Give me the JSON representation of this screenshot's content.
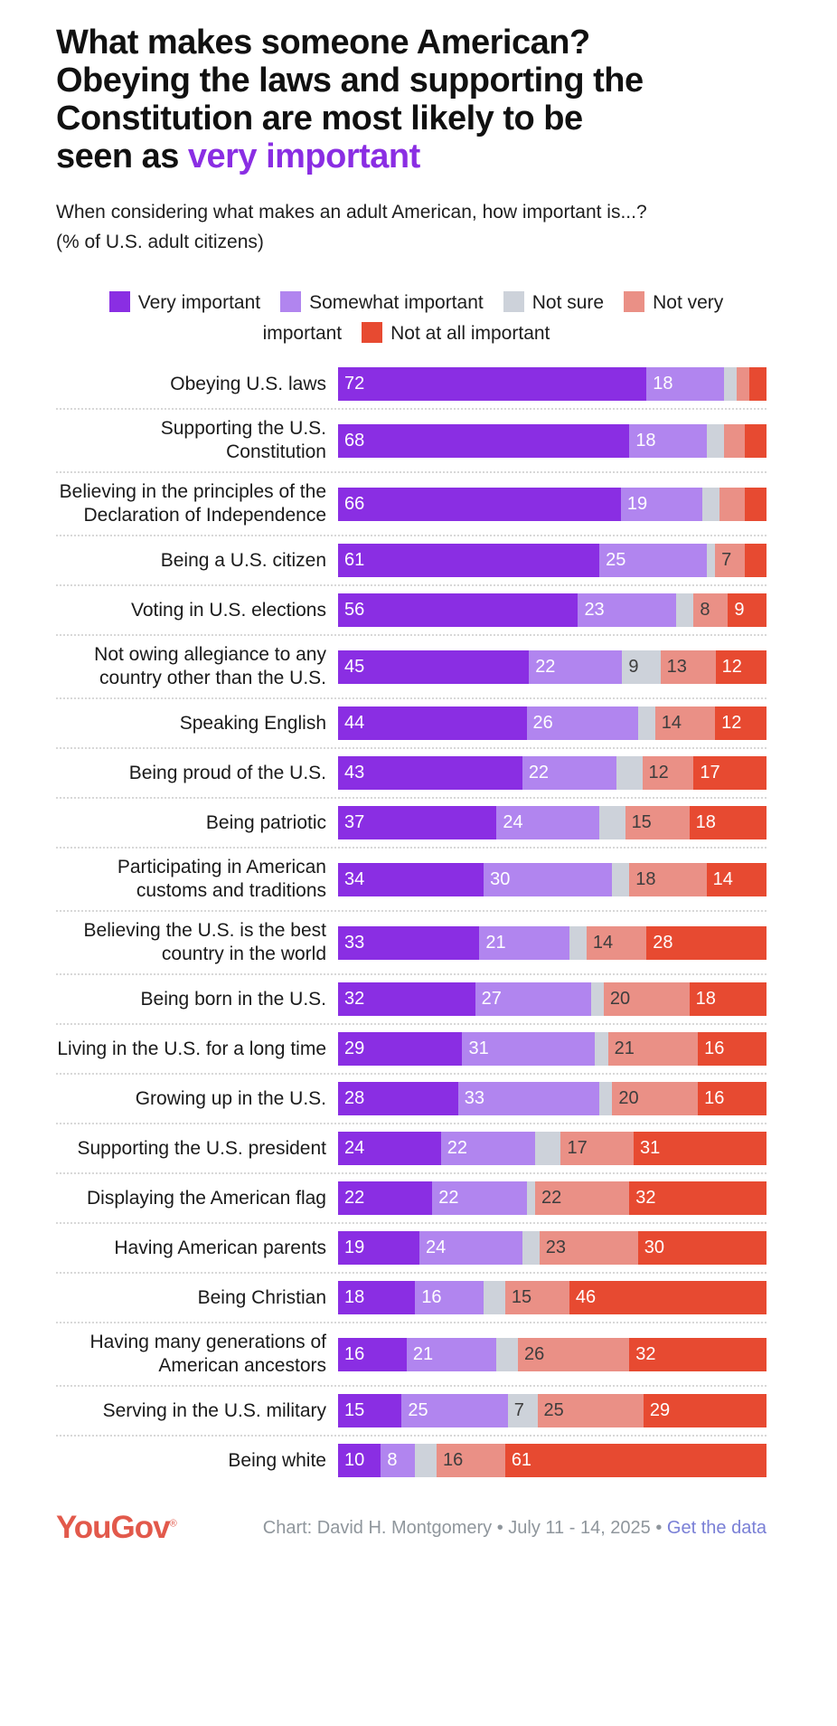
{
  "title": {
    "lines": [
      "What makes someone American?",
      "Obeying the laws and supporting the",
      "Constitution are most likely to be",
      "seen as"
    ],
    "highlight": "very important",
    "highlight_color": "#8a2ee3"
  },
  "subtitle": {
    "line1": "When considering what makes an adult American, how important is...?",
    "line2": "(% of U.S. adult citizens)"
  },
  "legend": [
    {
      "label": "Very important",
      "color": "#8a2ee3"
    },
    {
      "label": "Somewhat important",
      "color": "#b185ef"
    },
    {
      "label": "Not sure",
      "color": "#cdd2da"
    },
    {
      "label": "Not very important",
      "color": "#ea9086"
    },
    {
      "label": "Not at all important",
      "color": "#e74a31"
    }
  ],
  "chart_data": {
    "type": "bar",
    "orientation": "horizontal",
    "stacked": true,
    "unit": "percent",
    "value_label_min": 7,
    "categories": [
      "Obeying U.S. laws",
      "Supporting the U.S. Constitution",
      "Believing in the principles of the Declaration of Independence",
      "Being a U.S. citizen",
      "Voting in U.S. elections",
      "Not owing allegiance to any country other than the U.S.",
      "Speaking English",
      "Being proud of the U.S.",
      "Being patriotic",
      "Participating in American customs and traditions",
      "Believing the U.S. is the best country in the world",
      "Being born in the U.S.",
      "Living in the U.S. for a long time",
      "Growing up in the U.S.",
      "Supporting the U.S. president",
      "Displaying the American flag",
      "Having American parents",
      "Being Christian",
      "Having many generations of American ancestors",
      "Serving in the U.S. military",
      "Being white"
    ],
    "series": [
      {
        "name": "Very important",
        "color": "#8a2ee3",
        "text": "light",
        "values": [
          72,
          68,
          66,
          61,
          56,
          45,
          44,
          43,
          37,
          34,
          33,
          32,
          29,
          28,
          24,
          22,
          19,
          18,
          16,
          15,
          10
        ]
      },
      {
        "name": "Somewhat important",
        "color": "#b185ef",
        "text": "light",
        "values": [
          18,
          18,
          19,
          25,
          23,
          22,
          26,
          22,
          24,
          30,
          21,
          27,
          31,
          33,
          22,
          22,
          24,
          16,
          21,
          25,
          8
        ]
      },
      {
        "name": "Not sure",
        "color": "#cdd2da",
        "text": "dark",
        "values": [
          3,
          4,
          4,
          2,
          4,
          9,
          4,
          6,
          6,
          4,
          4,
          3,
          3,
          3,
          6,
          2,
          4,
          5,
          5,
          7,
          5
        ]
      },
      {
        "name": "Not very important",
        "color": "#ea9086",
        "text": "dark",
        "values": [
          3,
          5,
          6,
          7,
          8,
          13,
          14,
          12,
          15,
          18,
          14,
          20,
          21,
          20,
          17,
          22,
          23,
          15,
          26,
          25,
          16
        ]
      },
      {
        "name": "Not at all important",
        "color": "#e74a31",
        "text": "light",
        "values": [
          4,
          5,
          5,
          5,
          9,
          12,
          12,
          17,
          18,
          14,
          28,
          18,
          16,
          16,
          31,
          32,
          30,
          46,
          32,
          29,
          61
        ]
      }
    ]
  },
  "footer": {
    "logo": "YouGov",
    "registered": "®",
    "credit": "Chart: David H. Montgomery • July 11 - 14, 2025 • ",
    "link": "Get the data"
  }
}
